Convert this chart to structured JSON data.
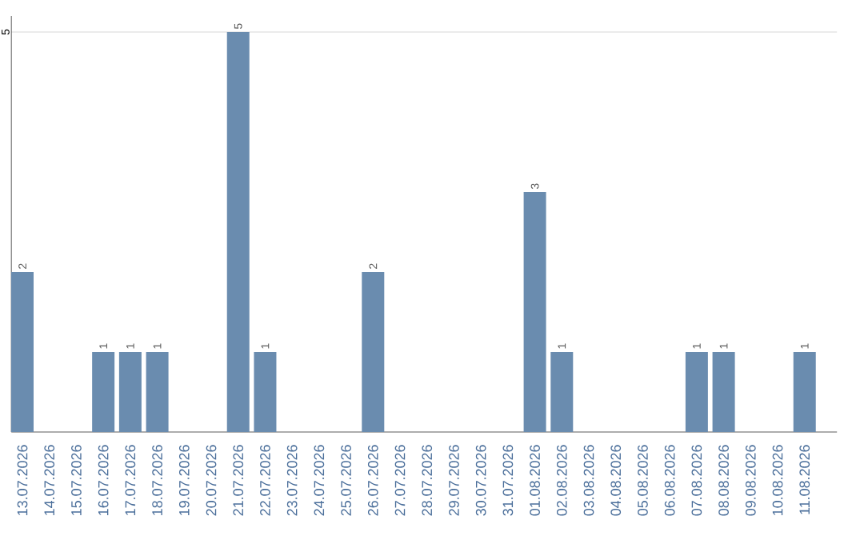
{
  "chart_data": {
    "type": "bar",
    "categories": [
      "13.07.2026",
      "14.07.2026",
      "15.07.2026",
      "16.07.2026",
      "17.07.2026",
      "18.07.2026",
      "19.07.2026",
      "20.07.2026",
      "21.07.2026",
      "22.07.2026",
      "23.07.2026",
      "24.07.2026",
      "25.07.2026",
      "26.07.2026",
      "27.07.2026",
      "28.07.2026",
      "29.07.2026",
      "30.07.2026",
      "31.07.2026",
      "01.08.2026",
      "02.08.2026",
      "03.08.2026",
      "04.08.2026",
      "05.08.2026",
      "06.08.2026",
      "07.08.2026",
      "08.08.2026",
      "09.08.2026",
      "10.08.2026",
      "11.08.2026"
    ],
    "values": [
      2,
      0,
      0,
      1,
      1,
      1,
      0,
      0,
      5,
      1,
      0,
      0,
      0,
      2,
      0,
      0,
      0,
      0,
      0,
      3,
      1,
      0,
      0,
      0,
      0,
      1,
      1,
      0,
      0,
      1
    ],
    "value_labels": [
      "2",
      null,
      null,
      "1",
      "1",
      "1",
      null,
      null,
      "5",
      "1",
      null,
      null,
      null,
      "2",
      null,
      null,
      null,
      null,
      null,
      "3",
      "1",
      null,
      null,
      null,
      null,
      "1",
      "1",
      null,
      null,
      "1"
    ],
    "color": "#6a8caf",
    "ylim": [
      0,
      5.2
    ],
    "yticks": [
      5
    ],
    "grid": "y"
  }
}
